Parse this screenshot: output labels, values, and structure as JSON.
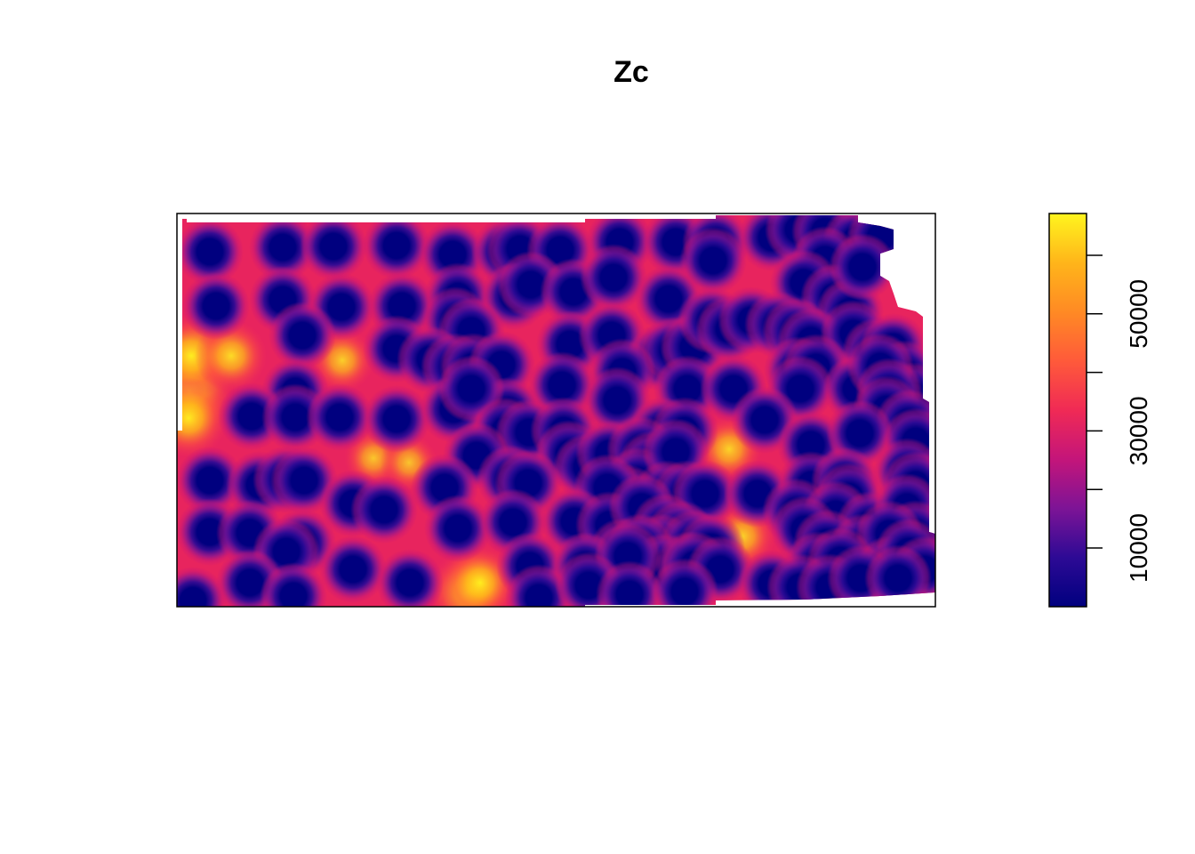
{
  "chart_data": {
    "type": "heatmap",
    "title": "Zc",
    "legend": {
      "placement": "right",
      "ticks": [
        {
          "value": 10000,
          "label": "10000"
        },
        {
          "value": 20000,
          "label": ""
        },
        {
          "value": 30000,
          "label": "30000"
        },
        {
          "value": 40000,
          "label": ""
        },
        {
          "value": 50000,
          "label": "50000"
        },
        {
          "value": 60000,
          "label": ""
        }
      ],
      "range": [
        0,
        60000
      ]
    },
    "colormap": [
      "#00007f",
      "#2d0a95",
      "#7d1496",
      "#c4157a",
      "#f02a55",
      "#ff5a3a",
      "#ff8a24",
      "#ffb51a",
      "#fff51e"
    ],
    "points": [
      [
        236,
        283
      ],
      [
        318,
        278
      ],
      [
        375,
        277
      ],
      [
        446,
        276
      ],
      [
        509,
        286
      ],
      [
        568,
        283
      ],
      [
        585,
        280
      ],
      [
        630,
        281
      ],
      [
        697,
        272
      ],
      [
        760,
        272
      ],
      [
        805,
        272
      ],
      [
        868,
        267
      ],
      [
        898,
        258
      ],
      [
        928,
        260
      ],
      [
        963,
        270
      ],
      [
        990,
        267
      ],
      [
        243,
        344
      ],
      [
        318,
        337
      ],
      [
        384,
        345
      ],
      [
        452,
        344
      ],
      [
        515,
        333
      ],
      [
        578,
        333
      ],
      [
        597,
        320
      ],
      [
        645,
        328
      ],
      [
        690,
        312
      ],
      [
        752,
        336
      ],
      [
        802,
        293
      ],
      [
        928,
        292
      ],
      [
        904,
        318
      ],
      [
        938,
        334
      ],
      [
        956,
        350
      ],
      [
        970,
        300
      ],
      [
        340,
        377
      ],
      [
        512,
        360
      ],
      [
        530,
        372
      ],
      [
        641,
        387
      ],
      [
        688,
        377
      ],
      [
        743,
        402
      ],
      [
        757,
        394
      ],
      [
        780,
        390
      ],
      [
        800,
        360
      ],
      [
        820,
        370
      ],
      [
        845,
        360
      ],
      [
        875,
        365
      ],
      [
        895,
        372
      ],
      [
        912,
        383
      ],
      [
        960,
        375
      ],
      [
        985,
        395
      ],
      [
        1005,
        390
      ],
      [
        1018,
        420
      ],
      [
        1028,
        445
      ],
      [
        446,
        392
      ],
      [
        484,
        404
      ],
      [
        511,
        412
      ],
      [
        532,
        412
      ],
      [
        564,
        410
      ],
      [
        632,
        433
      ],
      [
        700,
        418
      ],
      [
        773,
        437
      ],
      [
        825,
        437
      ],
      [
        897,
        416
      ],
      [
        918,
        413
      ],
      [
        900,
        437
      ],
      [
        963,
        437
      ],
      [
        990,
        412
      ],
      [
        1000,
        440
      ],
      [
        332,
        440
      ],
      [
        283,
        468
      ],
      [
        332,
        469
      ],
      [
        382,
        469
      ],
      [
        446,
        471
      ],
      [
        510,
        460
      ],
      [
        571,
        462
      ],
      [
        694,
        450
      ],
      [
        860,
        472
      ],
      [
        997,
        460
      ],
      [
        1022,
        475
      ],
      [
        530,
        437
      ],
      [
        568,
        484
      ],
      [
        595,
        486
      ],
      [
        634,
        484
      ],
      [
        745,
        484
      ],
      [
        770,
        484
      ],
      [
        912,
        500
      ],
      [
        967,
        487
      ],
      [
        1030,
        496
      ],
      [
        1020,
        530
      ],
      [
        536,
        512
      ],
      [
        640,
        510
      ],
      [
        660,
        525
      ],
      [
        685,
        510
      ],
      [
        720,
        505
      ],
      [
        733,
        522
      ],
      [
        718,
        540
      ],
      [
        705,
        560
      ],
      [
        760,
        508
      ],
      [
        236,
        540
      ],
      [
        292,
        545
      ],
      [
        322,
        539
      ],
      [
        342,
        540
      ],
      [
        500,
        548
      ],
      [
        574,
        538
      ],
      [
        594,
        543
      ],
      [
        683,
        548
      ],
      [
        750,
        555
      ],
      [
        772,
        555
      ],
      [
        793,
        555
      ],
      [
        852,
        555
      ],
      [
        912,
        545
      ],
      [
        950,
        540
      ],
      [
        955,
        558
      ],
      [
        1030,
        545
      ],
      [
        397,
        566
      ],
      [
        432,
        573
      ],
      [
        646,
        586
      ],
      [
        685,
        590
      ],
      [
        722,
        570
      ],
      [
        748,
        592
      ],
      [
        765,
        600
      ],
      [
        744,
        615
      ],
      [
        780,
        610
      ],
      [
        895,
        575
      ],
      [
        940,
        578
      ],
      [
        978,
        590
      ],
      [
        1020,
        570
      ],
      [
        1030,
        600
      ],
      [
        236,
        598
      ],
      [
        281,
        599
      ],
      [
        340,
        610
      ],
      [
        322,
        620
      ],
      [
        515,
        594
      ],
      [
        577,
        587
      ],
      [
        700,
        620
      ],
      [
        720,
        615
      ],
      [
        746,
        637
      ],
      [
        775,
        635
      ],
      [
        800,
        615
      ],
      [
        905,
        595
      ],
      [
        930,
        610
      ],
      [
        970,
        615
      ],
      [
        1000,
        600
      ],
      [
        397,
        640
      ],
      [
        461,
        655
      ],
      [
        596,
        636
      ],
      [
        658,
        636
      ],
      [
        706,
        625
      ],
      [
        781,
        635
      ],
      [
        810,
        640
      ],
      [
        920,
        635
      ],
      [
        945,
        630
      ],
      [
        1000,
        640
      ],
      [
        1022,
        620
      ],
      [
        1040,
        640
      ],
      [
        281,
        655
      ],
      [
        330,
        670
      ],
      [
        217,
        675
      ],
      [
        606,
        672
      ],
      [
        662,
        658
      ],
      [
        708,
        668
      ],
      [
        770,
        665
      ],
      [
        868,
        656
      ],
      [
        900,
        660
      ],
      [
        933,
        660
      ],
      [
        968,
        650
      ],
      [
        1010,
        650
      ]
    ],
    "hotspots": [
      [
        213,
        440,
        1.0
      ],
      [
        215,
        400,
        0.92
      ],
      [
        212,
        470,
        0.85
      ],
      [
        260,
        400,
        0.7
      ],
      [
        527,
        665,
        0.88
      ],
      [
        540,
        655,
        0.78
      ],
      [
        385,
        405,
        0.55
      ],
      [
        820,
        505,
        0.6
      ],
      [
        835,
        603,
        0.6
      ],
      [
        420,
        515,
        0.45
      ],
      [
        460,
        520,
        0.42
      ]
    ]
  }
}
